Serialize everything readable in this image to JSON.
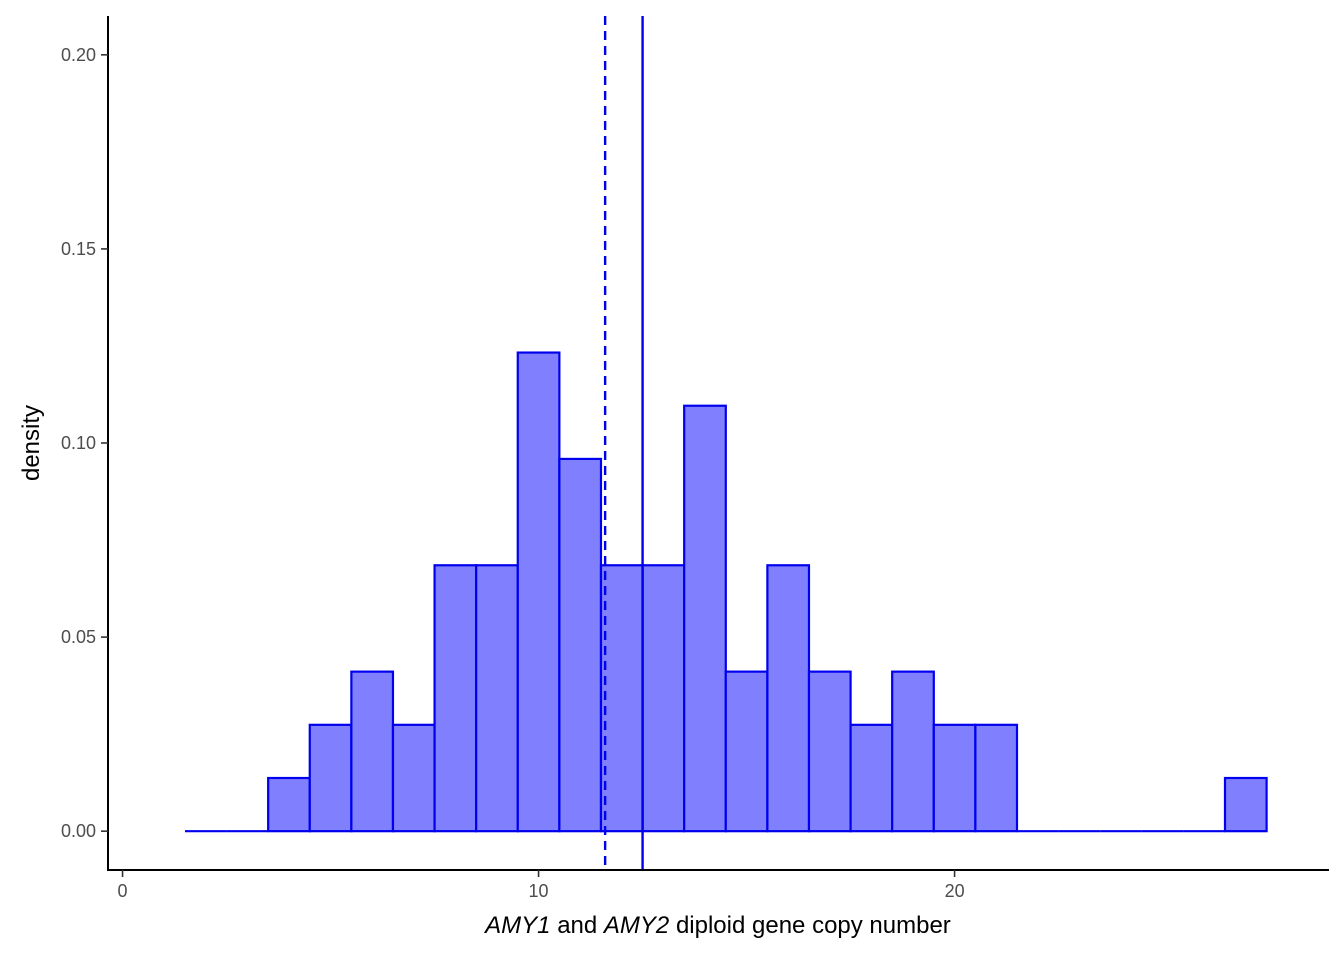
{
  "chart_data": {
    "type": "bar",
    "subtype": "histogram",
    "xlabel_parts": [
      {
        "text": "AMY1",
        "italic": true
      },
      {
        "text": " and ",
        "italic": false
      },
      {
        "text": "AMY2",
        "italic": true
      },
      {
        "text": " diploid gene copy number",
        "italic": false
      }
    ],
    "ylabel": "density",
    "xlim": [
      -0.35,
      29.0
    ],
    "ylim": [
      -0.01,
      0.21
    ],
    "x_ticks": [
      0,
      10,
      20
    ],
    "x_tick_labels": [
      "0",
      "10",
      "20"
    ],
    "y_ticks": [
      0.0,
      0.05,
      0.1,
      0.15,
      0.2
    ],
    "y_tick_labels": [
      "0.00",
      "0.05",
      "0.10",
      "0.15",
      "0.20"
    ],
    "grid": false,
    "legend": "none",
    "bin_width": 1,
    "bins": [
      {
        "x0": 1.5,
        "x1": 2.5,
        "density": 0.0
      },
      {
        "x0": 2.5,
        "x1": 3.5,
        "density": 0.0
      },
      {
        "x0": 3.5,
        "x1": 4.5,
        "density": 0.0137
      },
      {
        "x0": 4.5,
        "x1": 5.5,
        "density": 0.0274
      },
      {
        "x0": 5.5,
        "x1": 6.5,
        "density": 0.0411
      },
      {
        "x0": 6.5,
        "x1": 7.5,
        "density": 0.0274
      },
      {
        "x0": 7.5,
        "x1": 8.5,
        "density": 0.0685
      },
      {
        "x0": 8.5,
        "x1": 9.5,
        "density": 0.0685
      },
      {
        "x0": 9.5,
        "x1": 10.5,
        "density": 0.1233
      },
      {
        "x0": 10.5,
        "x1": 11.5,
        "density": 0.0959
      },
      {
        "x0": 11.5,
        "x1": 12.5,
        "density": 0.0685
      },
      {
        "x0": 12.5,
        "x1": 13.5,
        "density": 0.0685
      },
      {
        "x0": 13.5,
        "x1": 14.5,
        "density": 0.1096
      },
      {
        "x0": 14.5,
        "x1": 15.5,
        "density": 0.0411
      },
      {
        "x0": 15.5,
        "x1": 16.5,
        "density": 0.0685
      },
      {
        "x0": 16.5,
        "x1": 17.5,
        "density": 0.0411
      },
      {
        "x0": 17.5,
        "x1": 18.5,
        "density": 0.0274
      },
      {
        "x0": 18.5,
        "x1": 19.5,
        "density": 0.0411
      },
      {
        "x0": 19.5,
        "x1": 20.5,
        "density": 0.0274
      },
      {
        "x0": 20.5,
        "x1": 21.5,
        "density": 0.0274
      },
      {
        "x0": 21.5,
        "x1": 22.5,
        "density": 0.0
      },
      {
        "x0": 22.5,
        "x1": 23.5,
        "density": 0.0
      },
      {
        "x0": 23.5,
        "x1": 24.5,
        "density": 0.0
      },
      {
        "x0": 24.5,
        "x1": 25.5,
        "density": 0.0
      },
      {
        "x0": 25.5,
        "x1": 26.5,
        "density": 0.0
      },
      {
        "x0": 26.5,
        "x1": 27.5,
        "density": 0.0137
      }
    ],
    "reference_lines": [
      {
        "type": "median",
        "x": 11.6,
        "style": "dashed"
      },
      {
        "type": "mean",
        "x": 12.5,
        "style": "solid"
      }
    ],
    "colors": {
      "bar_fill": "#8080ff",
      "bar_stroke": "#0000ee",
      "reference_line": "#0000ee",
      "axis": "#000000"
    }
  }
}
